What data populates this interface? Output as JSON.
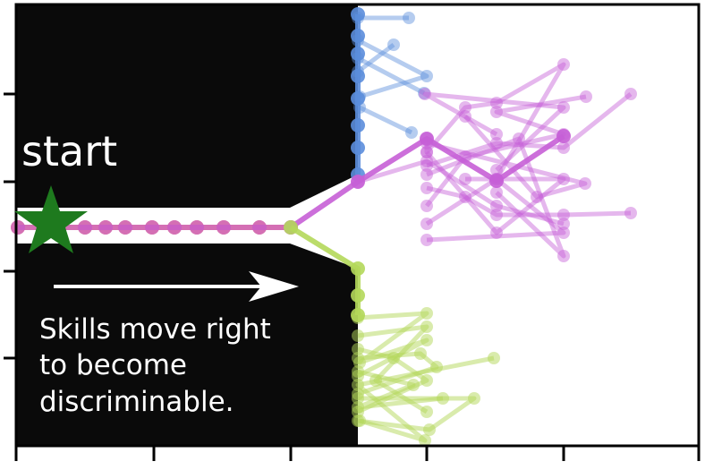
{
  "labels": {
    "start": "start",
    "caption_lines": [
      "Skills move right",
      "to become",
      "discriminable."
    ]
  },
  "colors": {
    "wall": "#0a0a0a",
    "free_space": "#ffffff",
    "frame": "#000000",
    "start_star": "#1e7a1e",
    "arrow": "#ffffff",
    "skill_blue": "#5b8ddb",
    "skill_magenta": "#c65fd6",
    "skill_green": "#b4d85a",
    "skill_red": "#e0605a"
  },
  "icons": {
    "start_marker": "star-icon",
    "direction": "right-arrow-icon"
  }
}
